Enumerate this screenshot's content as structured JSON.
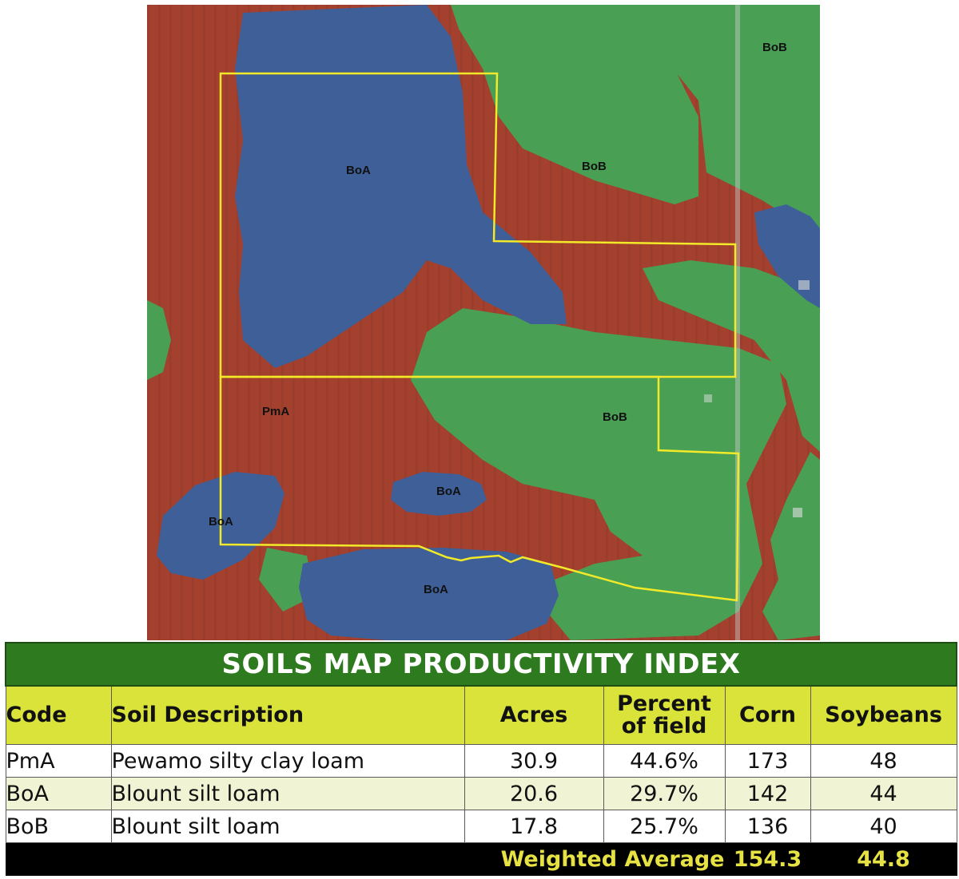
{
  "map": {
    "colors": {
      "pmA": "#a3402e",
      "boA": "#3e5f97",
      "boB": "#49a055",
      "boundary": "#f2ea28"
    },
    "labels": [
      {
        "code": "BoB",
        "id": "label-bob-top-right"
      },
      {
        "code": "BoA",
        "id": "label-boa-upper-left"
      },
      {
        "code": "BoB",
        "id": "label-bob-upper-center"
      },
      {
        "code": "PmA",
        "id": "label-pma"
      },
      {
        "code": "BoB",
        "id": "label-bob-middle-right"
      },
      {
        "code": "BoA",
        "id": "label-boa-center"
      },
      {
        "code": "BoA",
        "id": "label-boa-left"
      },
      {
        "code": "BoA",
        "id": "label-boa-bottom"
      }
    ]
  },
  "table": {
    "title": "SOILS MAP PRODUCTIVITY INDEX",
    "headers": {
      "code": "Code",
      "description": "Soil Description",
      "acres": "Acres",
      "percent_line1": "Percent",
      "percent_line2": "of field",
      "corn": "Corn",
      "soybeans": "Soybeans"
    },
    "rows": [
      {
        "code": "PmA",
        "description": "Pewamo silty clay loam",
        "acres": "30.9",
        "percent": "44.6%",
        "corn": "173",
        "soybeans": "48"
      },
      {
        "code": "BoA",
        "description": "Blount silt loam",
        "acres": "20.6",
        "percent": "29.7%",
        "corn": "142",
        "soybeans": "44"
      },
      {
        "code": "BoB",
        "description": "Blount silt loam",
        "acres": "17.8",
        "percent": "25.7%",
        "corn": "136",
        "soybeans": "40"
      }
    ],
    "footer": {
      "label": "Weighted Average",
      "corn": "154.3",
      "soybeans": "44.8"
    },
    "colors": {
      "title_bg": "#2d7a1f",
      "header_bg": "#d9e33a",
      "footer_bg": "#000000",
      "footer_text": "#e6e244"
    }
  }
}
